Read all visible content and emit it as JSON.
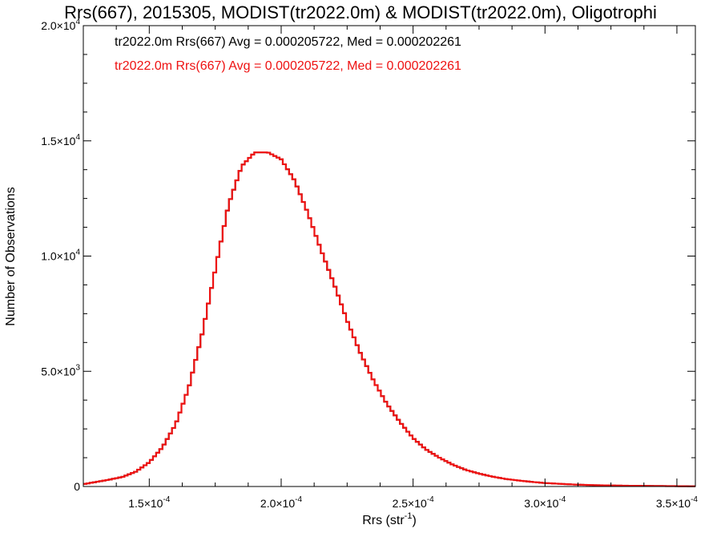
{
  "chart_data": {
    "type": "line",
    "title": "Rrs(667), 2015305, MODIST(tr2022.0m) & MODIST(tr2022.0m), Oligotrophi",
    "xlabel": "Rrs (str",
    "xlabel_sup": "-1",
    "xlabel_end": ")",
    "ylabel": "Number of Observations",
    "xlim": [
      0.000125,
      0.000357
    ],
    "ylim": [
      0,
      20000
    ],
    "grid": false,
    "legend_position": "top-left",
    "x_ticks": [
      {
        "value": 0.00015,
        "mantissa": "1.5×10",
        "exp": "-4"
      },
      {
        "value": 0.0002,
        "mantissa": "2.0×10",
        "exp": "-4"
      },
      {
        "value": 0.00025,
        "mantissa": "2.5×10",
        "exp": "-4"
      },
      {
        "value": 0.0003,
        "mantissa": "3.0×10",
        "exp": "-4"
      },
      {
        "value": 0.00035,
        "mantissa": "3.5×10",
        "exp": "-4"
      }
    ],
    "y_ticks": [
      {
        "value": 0,
        "mantissa": "0",
        "exp": ""
      },
      {
        "value": 5000,
        "mantissa": "5.0×10",
        "exp": "3"
      },
      {
        "value": 10000,
        "mantissa": "1.0×10",
        "exp": "4"
      },
      {
        "value": 15000,
        "mantissa": "1.5×10",
        "exp": "4"
      },
      {
        "value": 20000,
        "mantissa": "2.0×10",
        "exp": "4"
      }
    ],
    "series": [
      {
        "name": "tr2022.0m Rrs(667) Avg = 0.000205722, Med = 0.000202261",
        "color": "#000000",
        "x": [
          0.000125,
          0.00013,
          0.000135,
          0.00014,
          0.000145,
          0.00015,
          0.000155,
          0.00016,
          0.000165,
          0.00017,
          0.000175,
          0.00018,
          0.000185,
          0.00019,
          0.000195,
          0.0002,
          0.000205,
          0.00021,
          0.000215,
          0.00022,
          0.000225,
          0.00023,
          0.000235,
          0.00024,
          0.000245,
          0.00025,
          0.000255,
          0.00026,
          0.000265,
          0.00027,
          0.000275,
          0.00028,
          0.000285,
          0.00029,
          0.000295,
          0.0003,
          0.000305,
          0.00031,
          0.000315,
          0.00032,
          0.000325,
          0.00033,
          0.000335,
          0.00034,
          0.000345,
          0.00035,
          0.000355
        ],
        "y": [
          100,
          200,
          300,
          420,
          650,
          1050,
          1700,
          2700,
          4300,
          6600,
          9400,
          12200,
          13900,
          14500,
          14500,
          14200,
          13300,
          11900,
          10300,
          8800,
          7200,
          5800,
          4600,
          3600,
          2800,
          2100,
          1600,
          1250,
          950,
          720,
          560,
          430,
          330,
          260,
          200,
          150,
          120,
          90,
          70,
          55,
          45,
          35,
          30,
          25,
          20,
          15,
          10
        ]
      },
      {
        "name": "tr2022.0m Rrs(667) Avg = 0.000205722, Med = 0.000202261",
        "color": "#ee1111",
        "x": [
          0.000125,
          0.00013,
          0.000135,
          0.00014,
          0.000145,
          0.00015,
          0.000155,
          0.00016,
          0.000165,
          0.00017,
          0.000175,
          0.00018,
          0.000185,
          0.00019,
          0.000195,
          0.0002,
          0.000205,
          0.00021,
          0.000215,
          0.00022,
          0.000225,
          0.00023,
          0.000235,
          0.00024,
          0.000245,
          0.00025,
          0.000255,
          0.00026,
          0.000265,
          0.00027,
          0.000275,
          0.00028,
          0.000285,
          0.00029,
          0.000295,
          0.0003,
          0.000305,
          0.00031,
          0.000315,
          0.00032,
          0.000325,
          0.00033,
          0.000335,
          0.00034,
          0.000345,
          0.00035,
          0.000355
        ],
        "y": [
          100,
          200,
          300,
          420,
          650,
          1050,
          1700,
          2700,
          4300,
          6600,
          9400,
          12200,
          13900,
          14500,
          14500,
          14200,
          13300,
          11900,
          10300,
          8800,
          7200,
          5800,
          4600,
          3600,
          2800,
          2100,
          1600,
          1250,
          950,
          720,
          560,
          430,
          330,
          260,
          200,
          150,
          120,
          90,
          70,
          55,
          45,
          35,
          30,
          25,
          20,
          15,
          10
        ]
      }
    ]
  }
}
